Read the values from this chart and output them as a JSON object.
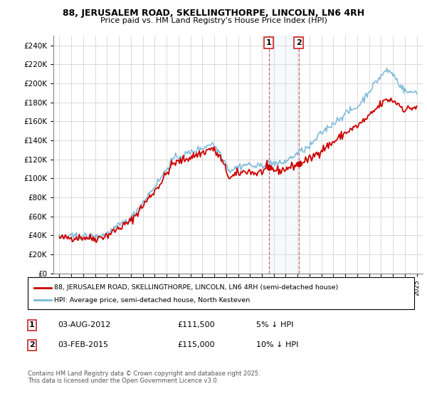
{
  "title1": "88, JERUSALEM ROAD, SKELLINGTHORPE, LINCOLN, LN6 4RH",
  "title2": "Price paid vs. HM Land Registry's House Price Index (HPI)",
  "legend_line1": "88, JERUSALEM ROAD, SKELLINGTHORPE, LINCOLN, LN6 4RH (semi-detached house)",
  "legend_line2": "HPI: Average price, semi-detached house, North Kesteven",
  "footnote": "Contains HM Land Registry data © Crown copyright and database right 2025.\nThis data is licensed under the Open Government Licence v3.0.",
  "sale1_label": "1",
  "sale1_date": "03-AUG-2012",
  "sale1_price": "£111,500",
  "sale1_hpi": "5% ↓ HPI",
  "sale2_label": "2",
  "sale2_date": "03-FEB-2015",
  "sale2_price": "£115,000",
  "sale2_hpi": "10% ↓ HPI",
  "hpi_color": "#7ab8d9",
  "price_color": "#cc0000",
  "marker1_x": 2012.58,
  "marker1_y": 111500,
  "marker2_x": 2015.08,
  "marker2_y": 115000,
  "ylim": [
    0,
    250000
  ],
  "yticks": [
    0,
    20000,
    40000,
    60000,
    80000,
    100000,
    120000,
    140000,
    160000,
    180000,
    200000,
    220000,
    240000
  ],
  "xlim_start": 1994.5,
  "xlim_end": 2025.5
}
